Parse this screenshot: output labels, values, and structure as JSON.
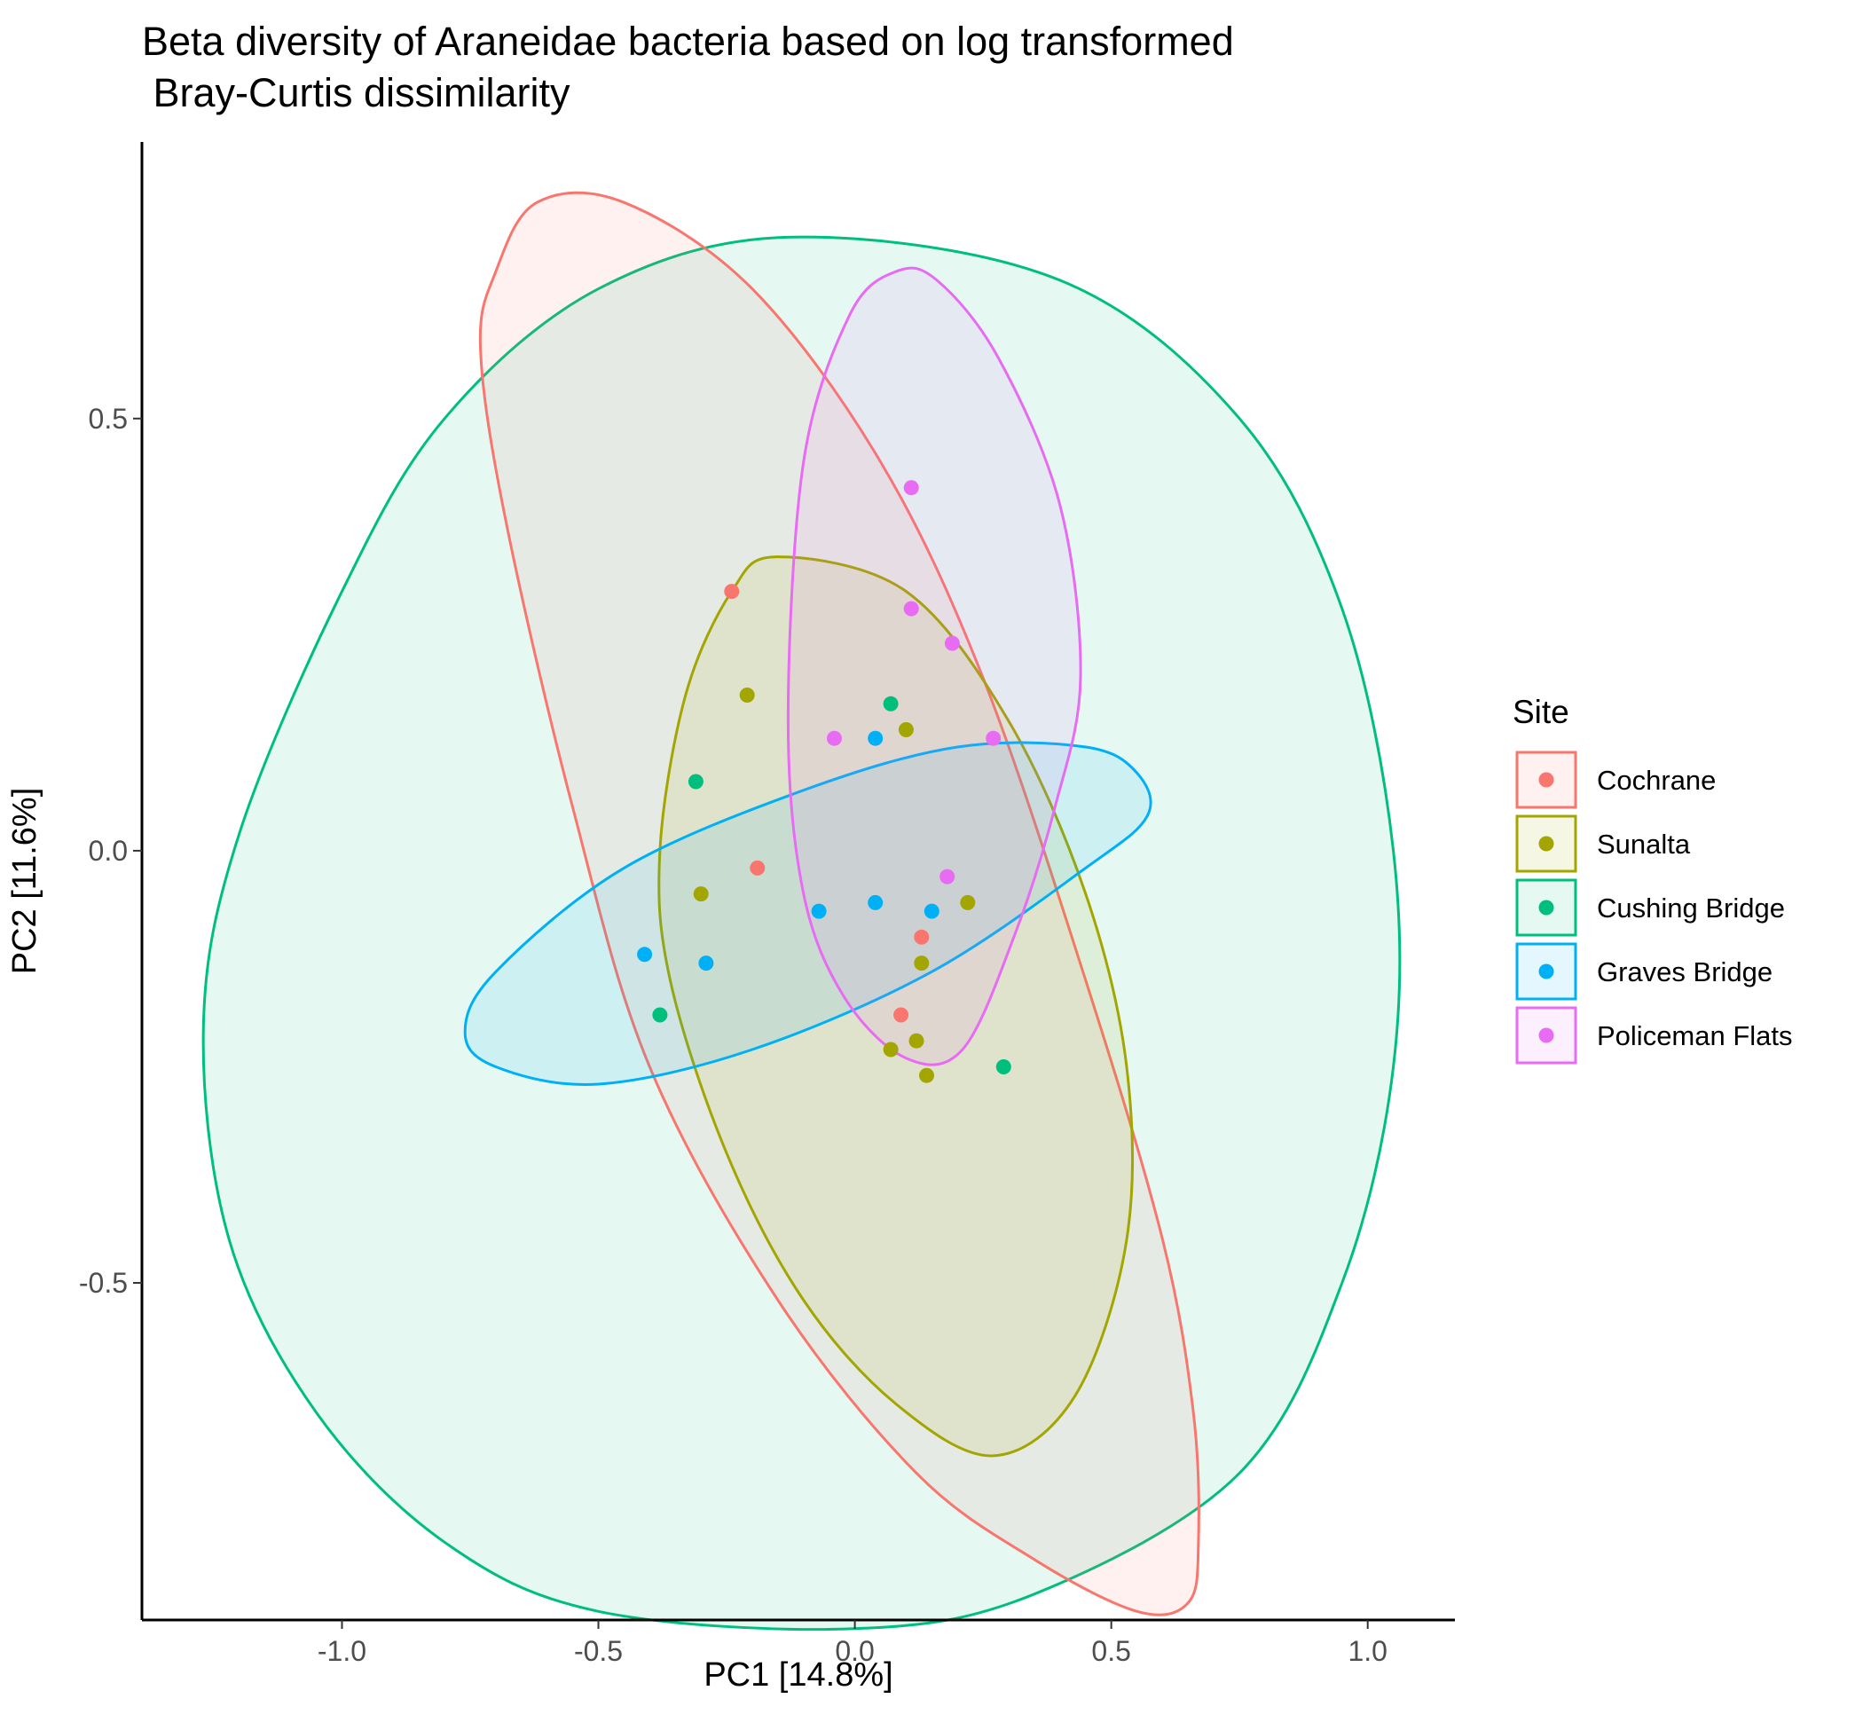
{
  "chart_data": {
    "type": "scatter",
    "title_line1": "Beta diversity of Araneidae bacteria based on log transformed",
    "title_line2": " Bray-Curtis dissimilarity",
    "xlabel": "PC1 [14.8%]",
    "ylabel": "PC2 [11.6%]",
    "xlim": [
      -1.39,
      1.17
    ],
    "ylim": [
      -0.89,
      0.82
    ],
    "x_ticks": [
      -1.0,
      -0.5,
      0.0,
      0.5,
      1.0
    ],
    "x_tick_labels": [
      "-1.0",
      "-0.5",
      "0.0",
      "0.5",
      "1.0"
    ],
    "y_ticks": [
      -0.5,
      0.0,
      0.5
    ],
    "y_tick_labels": [
      "-0.5",
      "0.0",
      "0.5"
    ],
    "grid": false,
    "legend_position": "right",
    "legend_title": "Site",
    "series": [
      {
        "name": "Cochrane",
        "color": "#F8766D",
        "points": [
          [
            -0.24,
            0.3
          ],
          [
            -0.19,
            -0.02
          ],
          [
            0.09,
            -0.19
          ],
          [
            0.13,
            -0.1
          ]
        ],
        "ellipse": [
          [
            -0.62,
            0.75
          ],
          [
            -0.7,
            0.67
          ],
          [
            -0.73,
            0.58
          ],
          [
            -0.68,
            0.38
          ],
          [
            -0.55,
            0.05
          ],
          [
            -0.4,
            -0.25
          ],
          [
            -0.15,
            -0.52
          ],
          [
            0.12,
            -0.72
          ],
          [
            0.35,
            -0.82
          ],
          [
            0.55,
            -0.88
          ],
          [
            0.65,
            -0.87
          ],
          [
            0.67,
            -0.8
          ],
          [
            0.66,
            -0.65
          ],
          [
            0.6,
            -0.45
          ],
          [
            0.45,
            -0.15
          ],
          [
            0.25,
            0.2
          ],
          [
            0.05,
            0.45
          ],
          [
            -0.2,
            0.65
          ],
          [
            -0.45,
            0.75
          ]
        ]
      },
      {
        "name": "Sunalta",
        "color": "#A3A500",
        "points": [
          [
            -0.21,
            0.18
          ],
          [
            0.1,
            0.14
          ],
          [
            -0.3,
            -0.05
          ],
          [
            0.22,
            -0.06
          ],
          [
            0.13,
            -0.13
          ],
          [
            0.12,
            -0.22
          ],
          [
            0.07,
            -0.23
          ],
          [
            0.14,
            -0.26
          ]
        ],
        "ellipse": [
          [
            -0.15,
            0.34
          ],
          [
            -0.24,
            0.3
          ],
          [
            -0.33,
            0.18
          ],
          [
            -0.38,
            0.0
          ],
          [
            -0.36,
            -0.15
          ],
          [
            -0.25,
            -0.35
          ],
          [
            -0.1,
            -0.52
          ],
          [
            0.08,
            -0.64
          ],
          [
            0.27,
            -0.7
          ],
          [
            0.43,
            -0.63
          ],
          [
            0.53,
            -0.45
          ],
          [
            0.53,
            -0.25
          ],
          [
            0.45,
            -0.05
          ],
          [
            0.3,
            0.15
          ],
          [
            0.1,
            0.3
          ]
        ]
      },
      {
        "name": "Cushing Bridge",
        "color": "#00BF7D",
        "points": [
          [
            0.07,
            0.17
          ],
          [
            -0.31,
            0.08
          ],
          [
            -0.38,
            -0.19
          ],
          [
            0.29,
            -0.25
          ]
        ],
        "ellipse": [
          [
            -0.12,
            0.71
          ],
          [
            -0.5,
            0.65
          ],
          [
            -0.8,
            0.5
          ],
          [
            -1.0,
            0.3
          ],
          [
            -1.2,
            0.02
          ],
          [
            -1.27,
            -0.2
          ],
          [
            -1.22,
            -0.45
          ],
          [
            -1.05,
            -0.65
          ],
          [
            -0.8,
            -0.8
          ],
          [
            -0.5,
            -0.88
          ],
          [
            0.0,
            -0.9
          ],
          [
            0.35,
            -0.86
          ],
          [
            0.75,
            -0.72
          ],
          [
            0.95,
            -0.5
          ],
          [
            1.05,
            -0.25
          ],
          [
            1.05,
            0.0
          ],
          [
            0.95,
            0.28
          ],
          [
            0.75,
            0.5
          ],
          [
            0.4,
            0.66
          ]
        ]
      },
      {
        "name": "Graves Bridge",
        "color": "#00B0F6",
        "points": [
          [
            -0.41,
            -0.12
          ],
          [
            -0.29,
            -0.13
          ],
          [
            -0.07,
            -0.07
          ],
          [
            0.04,
            -0.06
          ],
          [
            0.04,
            0.13
          ],
          [
            0.15,
            -0.07
          ]
        ],
        "ellipse": [
          [
            -0.76,
            -0.21
          ],
          [
            -0.7,
            -0.25
          ],
          [
            -0.5,
            -0.27
          ],
          [
            -0.2,
            -0.23
          ],
          [
            0.15,
            -0.14
          ],
          [
            0.45,
            -0.02
          ],
          [
            0.57,
            0.04
          ],
          [
            0.55,
            0.09
          ],
          [
            0.45,
            0.12
          ],
          [
            0.2,
            0.12
          ],
          [
            -0.1,
            0.07
          ],
          [
            -0.45,
            -0.02
          ],
          [
            -0.7,
            -0.14
          ]
        ]
      },
      {
        "name": "Policeman Flats",
        "color": "#E76BF3",
        "points": [
          [
            0.11,
            0.42
          ],
          [
            0.11,
            0.28
          ],
          [
            0.19,
            0.24
          ],
          [
            -0.04,
            0.13
          ],
          [
            0.27,
            0.13
          ],
          [
            0.18,
            -0.03
          ]
        ],
        "ellipse": [
          [
            0.08,
            0.67
          ],
          [
            -0.01,
            0.62
          ],
          [
            -0.1,
            0.45
          ],
          [
            -0.13,
            0.15
          ],
          [
            -0.1,
            -0.05
          ],
          [
            -0.02,
            -0.17
          ],
          [
            0.1,
            -0.24
          ],
          [
            0.21,
            -0.23
          ],
          [
            0.31,
            -0.1
          ],
          [
            0.39,
            0.05
          ],
          [
            0.44,
            0.2
          ],
          [
            0.4,
            0.4
          ],
          [
            0.28,
            0.57
          ],
          [
            0.16,
            0.66
          ]
        ]
      }
    ]
  }
}
